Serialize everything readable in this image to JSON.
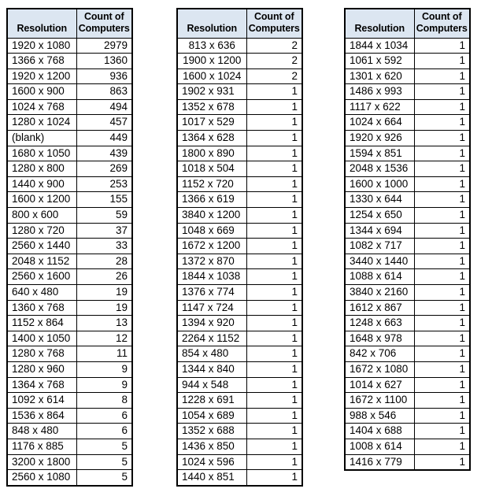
{
  "page": {
    "background_color": "#ffffff",
    "header_fill_color": "#DCE6F1",
    "border_color": "#000000",
    "text_color": "#000000"
  },
  "chart_data": [
    {
      "type": "table",
      "columns": [
        "Resolution",
        "Count of Computers"
      ],
      "rows": [
        {
          "res": "1920 x 1080",
          "count": 2979
        },
        {
          "res": "1366 x 768",
          "count": 1360
        },
        {
          "res": "1920 x 1200",
          "count": 936
        },
        {
          "res": "1600 x 900",
          "count": 863
        },
        {
          "res": "1024 x 768",
          "count": 494
        },
        {
          "res": "1280 x 1024",
          "count": 457
        },
        {
          "res": "(blank)",
          "count": 449
        },
        {
          "res": "1680 x 1050",
          "count": 439
        },
        {
          "res": "1280 x 800",
          "count": 269
        },
        {
          "res": "1440 x 900",
          "count": 253
        },
        {
          "res": "1600 x 1200",
          "count": 155
        },
        {
          "res": "800 x 600",
          "count": 59
        },
        {
          "res": "1280 x 720",
          "count": 37
        },
        {
          "res": "2560 x 1440",
          "count": 33
        },
        {
          "res": "2048 x 1152",
          "count": 28
        },
        {
          "res": "2560 x 1600",
          "count": 26
        },
        {
          "res": "640 x 480",
          "count": 19
        },
        {
          "res": "1360 x 768",
          "count": 19
        },
        {
          "res": "1152 x 864",
          "count": 13
        },
        {
          "res": "1400 x 1050",
          "count": 12
        },
        {
          "res": "1280 x 768",
          "count": 11
        },
        {
          "res": "1280 x 960",
          "count": 9
        },
        {
          "res": "1364 x 768",
          "count": 9
        },
        {
          "res": "1092 x 614",
          "count": 8
        },
        {
          "res": "1536 x 864",
          "count": 6
        },
        {
          "res": "848 x 480",
          "count": 6
        },
        {
          "res": "1176 x 885",
          "count": 5
        },
        {
          "res": "3200 x 1800",
          "count": 5
        },
        {
          "res": "2560 x 1080",
          "count": 5
        }
      ]
    },
    {
      "type": "table",
      "columns": [
        "Resolution",
        "Count of Computers"
      ],
      "rows": [
        {
          "res": "813 x 636",
          "count": 2,
          "center": true
        },
        {
          "res": "1900 x 1200",
          "count": 2,
          "center": true
        },
        {
          "res": "1600 x 1024",
          "count": 2,
          "center": true
        },
        {
          "res": "1902 x 931",
          "count": 1
        },
        {
          "res": "1352 x 678",
          "count": 1
        },
        {
          "res": "1017 x 529",
          "count": 1
        },
        {
          "res": "1364 x 628",
          "count": 1
        },
        {
          "res": "1800 x 890",
          "count": 1
        },
        {
          "res": "1018 x 504",
          "count": 1
        },
        {
          "res": "1152 x 720",
          "count": 1
        },
        {
          "res": "1366 x 619",
          "count": 1
        },
        {
          "res": "3840 x 1200",
          "count": 1
        },
        {
          "res": "1048 x 669",
          "count": 1
        },
        {
          "res": "1672 x 1200",
          "count": 1
        },
        {
          "res": "1372 x 870",
          "count": 1
        },
        {
          "res": "1844 x 1038",
          "count": 1
        },
        {
          "res": "1376 x 774",
          "count": 1
        },
        {
          "res": "1147 x 724",
          "count": 1
        },
        {
          "res": "1394 x 920",
          "count": 1
        },
        {
          "res": "2264 x 1152",
          "count": 1
        },
        {
          "res": "854 x 480",
          "count": 1
        },
        {
          "res": "1344 x 840",
          "count": 1
        },
        {
          "res": "944 x 548",
          "count": 1
        },
        {
          "res": "1228 x 691",
          "count": 1
        },
        {
          "res": "1054 x 689",
          "count": 1
        },
        {
          "res": "1352 x 688",
          "count": 1
        },
        {
          "res": "1436 x 850",
          "count": 1
        },
        {
          "res": "1024 x 596",
          "count": 1
        },
        {
          "res": "1440 x 851",
          "count": 1
        }
      ]
    },
    {
      "type": "table",
      "columns": [
        "Resolution",
        "Count of Computers"
      ],
      "rows": [
        {
          "res": "1844 x 1034",
          "count": 1
        },
        {
          "res": "1061 x 592",
          "count": 1
        },
        {
          "res": "1301 x 620",
          "count": 1
        },
        {
          "res": "1486 x 993",
          "count": 1
        },
        {
          "res": "1117 x 622",
          "count": 1
        },
        {
          "res": "1024 x 664",
          "count": 1
        },
        {
          "res": "1920 x 926",
          "count": 1
        },
        {
          "res": "1594 x 851",
          "count": 1
        },
        {
          "res": "2048 x 1536",
          "count": 1
        },
        {
          "res": "1600 x 1000",
          "count": 1
        },
        {
          "res": "1330 x 644",
          "count": 1
        },
        {
          "res": "1254 x 650",
          "count": 1
        },
        {
          "res": "1344 x 694",
          "count": 1
        },
        {
          "res": "1082 x 717",
          "count": 1
        },
        {
          "res": "3440 x 1440",
          "count": 1
        },
        {
          "res": "1088 x 614",
          "count": 1
        },
        {
          "res": "3840 x 2160",
          "count": 1
        },
        {
          "res": "1612 x 867",
          "count": 1
        },
        {
          "res": "1248 x 663",
          "count": 1
        },
        {
          "res": "1648 x 978",
          "count": 1
        },
        {
          "res": "842 x 706",
          "count": 1
        },
        {
          "res": "1672 x 1080",
          "count": 1
        },
        {
          "res": "1014 x 627",
          "count": 1
        },
        {
          "res": "1672 x 1100",
          "count": 1
        },
        {
          "res": "988 x 546",
          "count": 1
        },
        {
          "res": "1404 x 688",
          "count": 1
        },
        {
          "res": "1008 x 614",
          "count": 1
        },
        {
          "res": "1416 x 779",
          "count": 1
        }
      ]
    }
  ]
}
